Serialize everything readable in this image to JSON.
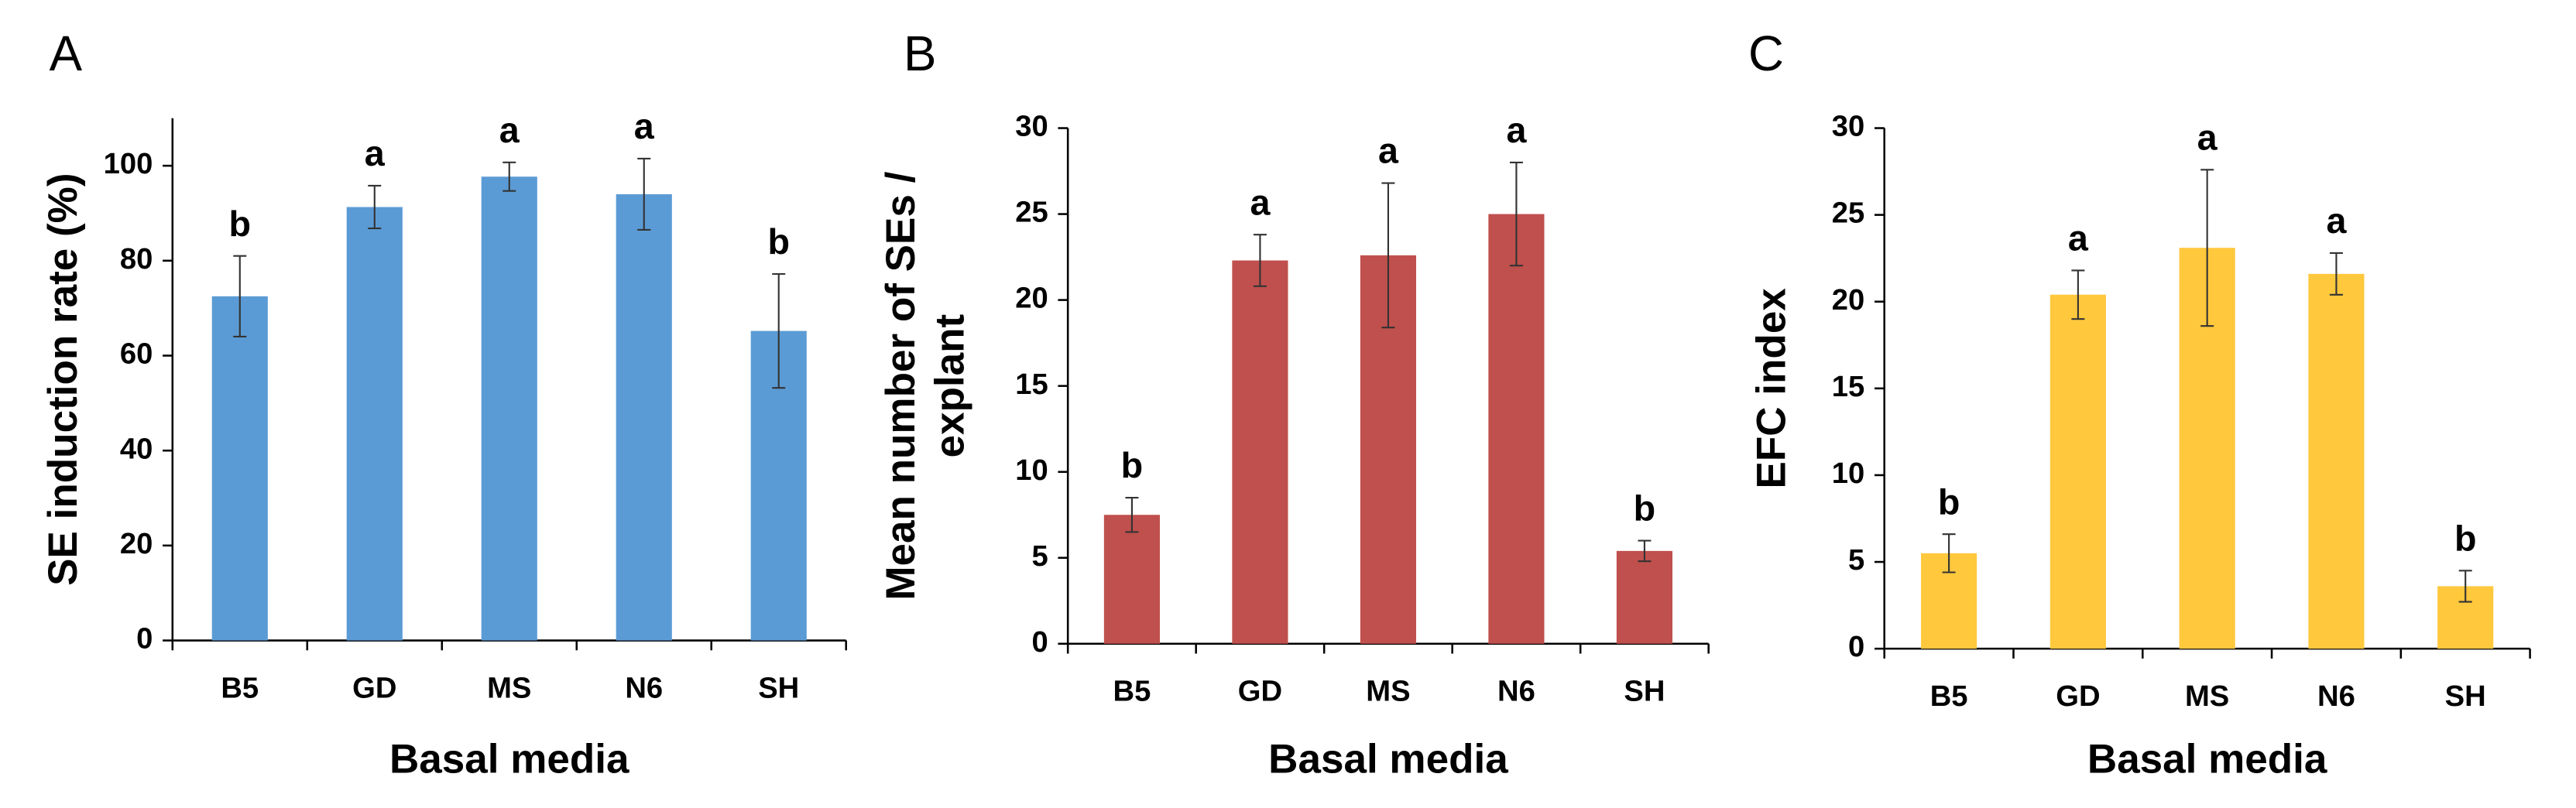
{
  "chart_data": [
    {
      "type": "bar",
      "panel_label": "A",
      "xlabel": "Basal media",
      "ylabel": [
        "SE induction rate (%)"
      ],
      "categories": [
        "B5",
        "GD",
        "MS",
        "N6",
        "SH"
      ],
      "values": [
        72.5,
        91.3,
        97.7,
        94,
        65.2
      ],
      "errors": [
        8.5,
        4.5,
        3,
        7.5,
        12
      ],
      "annotations": [
        "b",
        "a",
        "a",
        "a",
        "b"
      ],
      "color": "#5b9bd5",
      "ylim": [
        0,
        110
      ],
      "yticks": [
        0,
        20,
        40,
        60,
        80,
        100
      ]
    },
    {
      "type": "bar",
      "panel_label": "B",
      "xlabel": "Basal media",
      "ylabel": [
        "Mean number of SEs /",
        "explant"
      ],
      "categories": [
        "B5",
        "GD",
        "MS",
        "N6",
        "SH"
      ],
      "values": [
        7.5,
        22.3,
        22.6,
        25,
        5.4
      ],
      "errors": [
        1,
        1.5,
        4.2,
        3,
        0.6
      ],
      "annotations": [
        "b",
        "a",
        "a",
        "a",
        "b"
      ],
      "color": "#c0504d",
      "ylim": [
        0,
        30
      ],
      "yticks": [
        0,
        5,
        10,
        15,
        20,
        25,
        30
      ]
    },
    {
      "type": "bar",
      "panel_label": "C",
      "xlabel": "Basal media",
      "ylabel": [
        "EFC index"
      ],
      "categories": [
        "B5",
        "GD",
        "MS",
        "N6",
        "SH"
      ],
      "values": [
        5.5,
        20.4,
        23.1,
        21.6,
        3.6
      ],
      "errors": [
        1.1,
        1.4,
        4.5,
        1.2,
        0.9
      ],
      "annotations": [
        "b",
        "a",
        "a",
        "a",
        "b"
      ],
      "color": "#ffc83d",
      "ylim": [
        0,
        30
      ],
      "yticks": [
        0,
        5,
        10,
        15,
        20,
        25,
        30
      ]
    }
  ]
}
